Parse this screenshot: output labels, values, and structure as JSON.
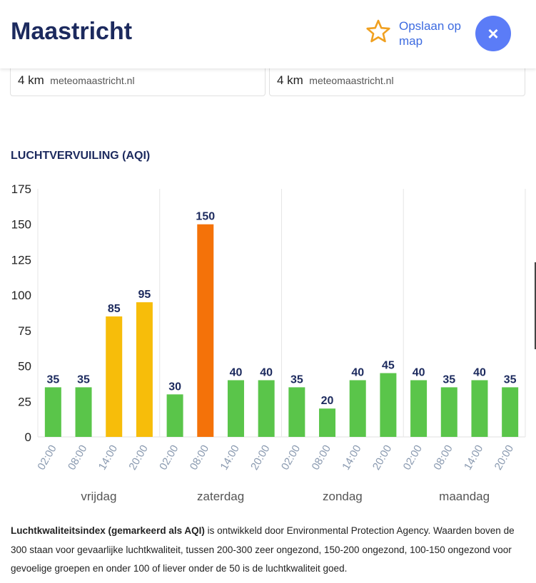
{
  "header": {
    "title": "Maastricht",
    "save_label": "Opslaan op map",
    "close_symbol": "×",
    "icons": {
      "save": "star-icon",
      "close": "close-icon"
    },
    "accent": "#5b7cf7",
    "star_color": "#f0a020"
  },
  "cards": [
    {
      "distance": "4 km",
      "source": "meteomaastricht.nl"
    },
    {
      "distance": "4 km",
      "source": "meteomaastricht.nl"
    }
  ],
  "section_title": "LUCHTVERVUILING (AQI)",
  "chart_data": {
    "type": "bar",
    "categories": [
      "02:00",
      "08:00",
      "14:00",
      "20:00",
      "02:00",
      "08:00",
      "14:00",
      "20:00",
      "02:00",
      "08:00",
      "14:00",
      "20:00",
      "02:00",
      "08:00",
      "14:00",
      "20:00"
    ],
    "values": [
      35,
      35,
      85,
      95,
      30,
      150,
      40,
      40,
      35,
      20,
      40,
      45,
      40,
      35,
      40,
      35
    ],
    "day_labels": [
      "vrijdag",
      "zaterdag",
      "zondag",
      "maandag"
    ],
    "y_ticks": [
      0,
      25,
      50,
      75,
      100,
      125,
      150,
      175
    ],
    "ylim": [
      0,
      175
    ],
    "grid": "vertical day separators",
    "colors": {
      "good": "#5ac54a",
      "moderate": "#f7bd0a",
      "unhealthy_sensitive": "#f47209"
    }
  },
  "note": {
    "bold": "Luchtkwaliteitsindex (gemarkeerd als AQI)",
    "text": " is ontwikkeld door Environmental Protection Agency. Waarden boven de 300 staan voor gevaarlijke luchtkwaliteit, tussen 200-300 zeer ongezond, 150-200 ongezond, 100-150 ongezond voor gevoelige groepen en onder 100 of liever onder de 50 is de luchtkwaliteit goed."
  }
}
